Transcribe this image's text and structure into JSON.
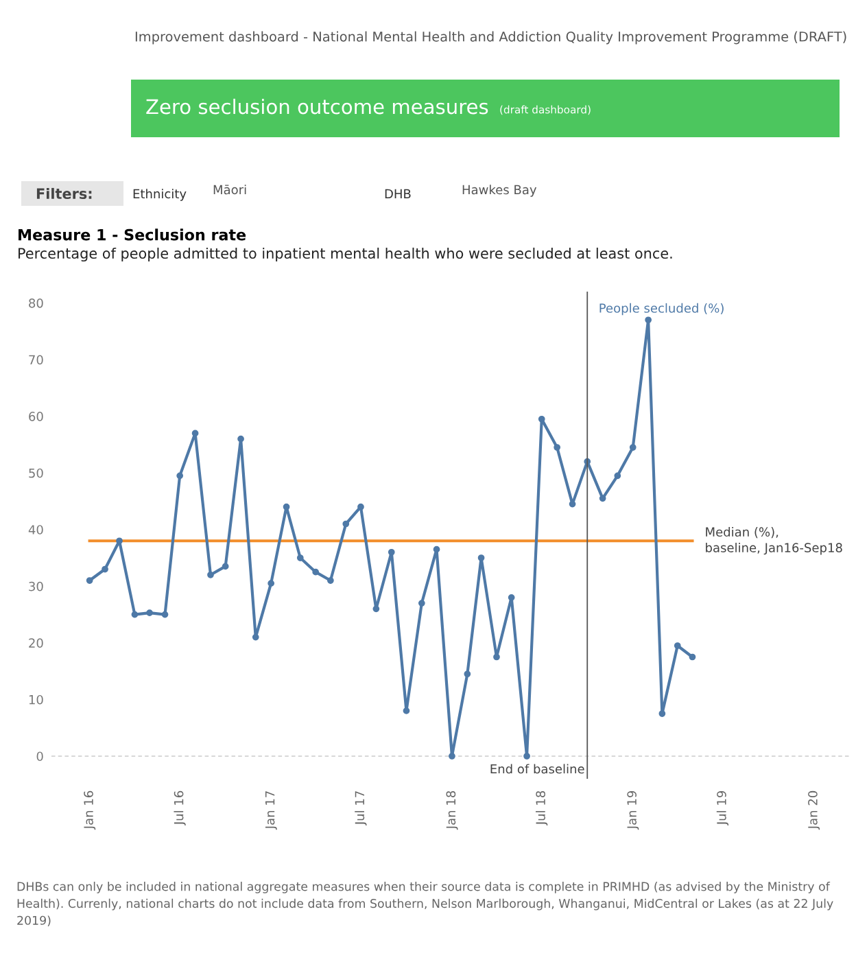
{
  "chart_data": {
    "type": "line",
    "title": "Measure 1 - Seclusion rate",
    "subtitle": "Percentage of people admitted to inpatient mental health who were secluded at least once.",
    "annotations": [
      "Improvement dashboard - National Mental Health and Addiction Quality Improvement Programme (DRAFT)",
      "Zero seclusion outcome measures",
      "(draft dashboard)",
      "Filters:",
      "Ethnicity",
      "Māori",
      "DHB",
      "Hawkes Bay",
      "DHBs can only be included in national aggregate measures when their source data is complete in PRIMHD (as advised by the Ministry of Health). Currenly, national charts do not include data from Southern, Nelson Marlborough, Whanganui, MidCentral or Lakes (as at 22 July 2019)"
    ],
    "x": [
      "2016-01",
      "2016-02",
      "2016-03",
      "2016-04",
      "2016-05",
      "2016-06",
      "2016-07",
      "2016-08",
      "2016-09",
      "2016-10",
      "2016-11",
      "2016-12",
      "2017-01",
      "2017-02",
      "2017-03",
      "2017-04",
      "2017-05",
      "2017-06",
      "2017-07",
      "2017-08",
      "2017-09",
      "2017-10",
      "2017-11",
      "2017-12",
      "2018-01",
      "2018-02",
      "2018-03",
      "2018-04",
      "2018-05",
      "2018-06",
      "2018-07",
      "2018-08",
      "2018-09",
      "2018-10",
      "2018-11",
      "2018-12",
      "2019-01",
      "2019-02",
      "2019-03",
      "2019-04",
      "2019-05"
    ],
    "series": [
      {
        "name": "People secluded (%)",
        "color": "#4e79a7",
        "values": [
          31,
          33,
          38,
          25,
          25.3,
          25,
          49.5,
          57,
          32,
          33.5,
          56,
          21,
          30.5,
          44,
          35,
          32.5,
          31,
          41,
          44,
          26,
          36,
          8,
          27,
          36.5,
          0,
          14.5,
          35,
          17.5,
          28,
          0,
          59.5,
          54.5,
          44.5,
          52,
          45.5,
          49.5,
          54.5,
          77,
          7.5,
          19.5,
          17.5
        ]
      }
    ],
    "xlim": [
      "2015-10-16",
      "2020-03-15"
    ],
    "xticks": [
      {
        "value": "2016-01",
        "label": "Jan 16"
      },
      {
        "value": "2016-07",
        "label": "Jul 16"
      },
      {
        "value": "2017-01",
        "label": "Jan 17"
      },
      {
        "value": "2017-07",
        "label": "Jul 17"
      },
      {
        "value": "2018-01",
        "label": "Jan 18"
      },
      {
        "value": "2018-07",
        "label": "Jul 18"
      },
      {
        "value": "2019-01",
        "label": "Jan 19"
      },
      {
        "value": "2019-07",
        "label": "Jul 19"
      },
      {
        "value": "2020-01",
        "label": "Jan 20"
      }
    ],
    "ylim": [
      -4,
      82
    ],
    "yticks": [
      0,
      10,
      20,
      30,
      40,
      50,
      60,
      70,
      80
    ],
    "grid": false,
    "legend": false,
    "marker": "circle",
    "line_style": "solid",
    "ref_lines": [
      {
        "axis": "y",
        "value": 0,
        "label": null,
        "color": "#cccccc",
        "line_style": "dashed"
      },
      {
        "axis": "y",
        "value": 38,
        "label": "Median (%),\nbaseline, Jan16-Sep18",
        "color": "#f28e2b",
        "line_style": "solid"
      },
      {
        "axis": "x",
        "value": "2018-10",
        "label": "End of baseline",
        "color": "#555555",
        "line_style": "solid"
      }
    ]
  }
}
